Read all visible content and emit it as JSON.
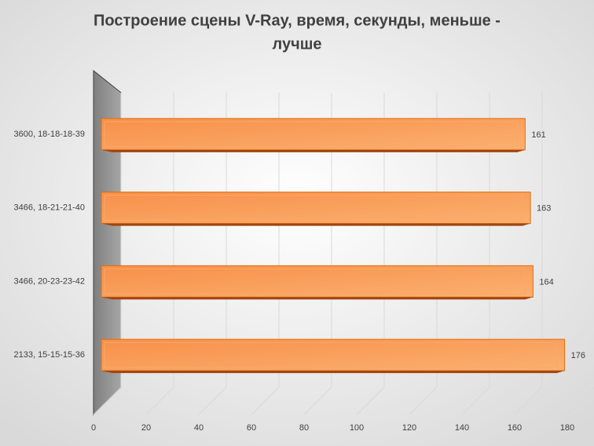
{
  "chart_data": {
    "type": "bar3d",
    "title_lines": [
      "Построение сцены V-Ray, время, секунды, меньше -",
      "лучше"
    ],
    "categories": [
      "3600, 18-18-18-39",
      "3466, 18-21-21-40",
      "3466, 20-23-23-42",
      "2133, 15-15-15-36"
    ],
    "values": [
      161,
      163,
      164,
      176
    ],
    "color": "#f79646",
    "xlim": [
      0,
      180
    ],
    "xticks": [
      0,
      20,
      40,
      60,
      80,
      100,
      120,
      140,
      160,
      180
    ],
    "grid": true
  }
}
